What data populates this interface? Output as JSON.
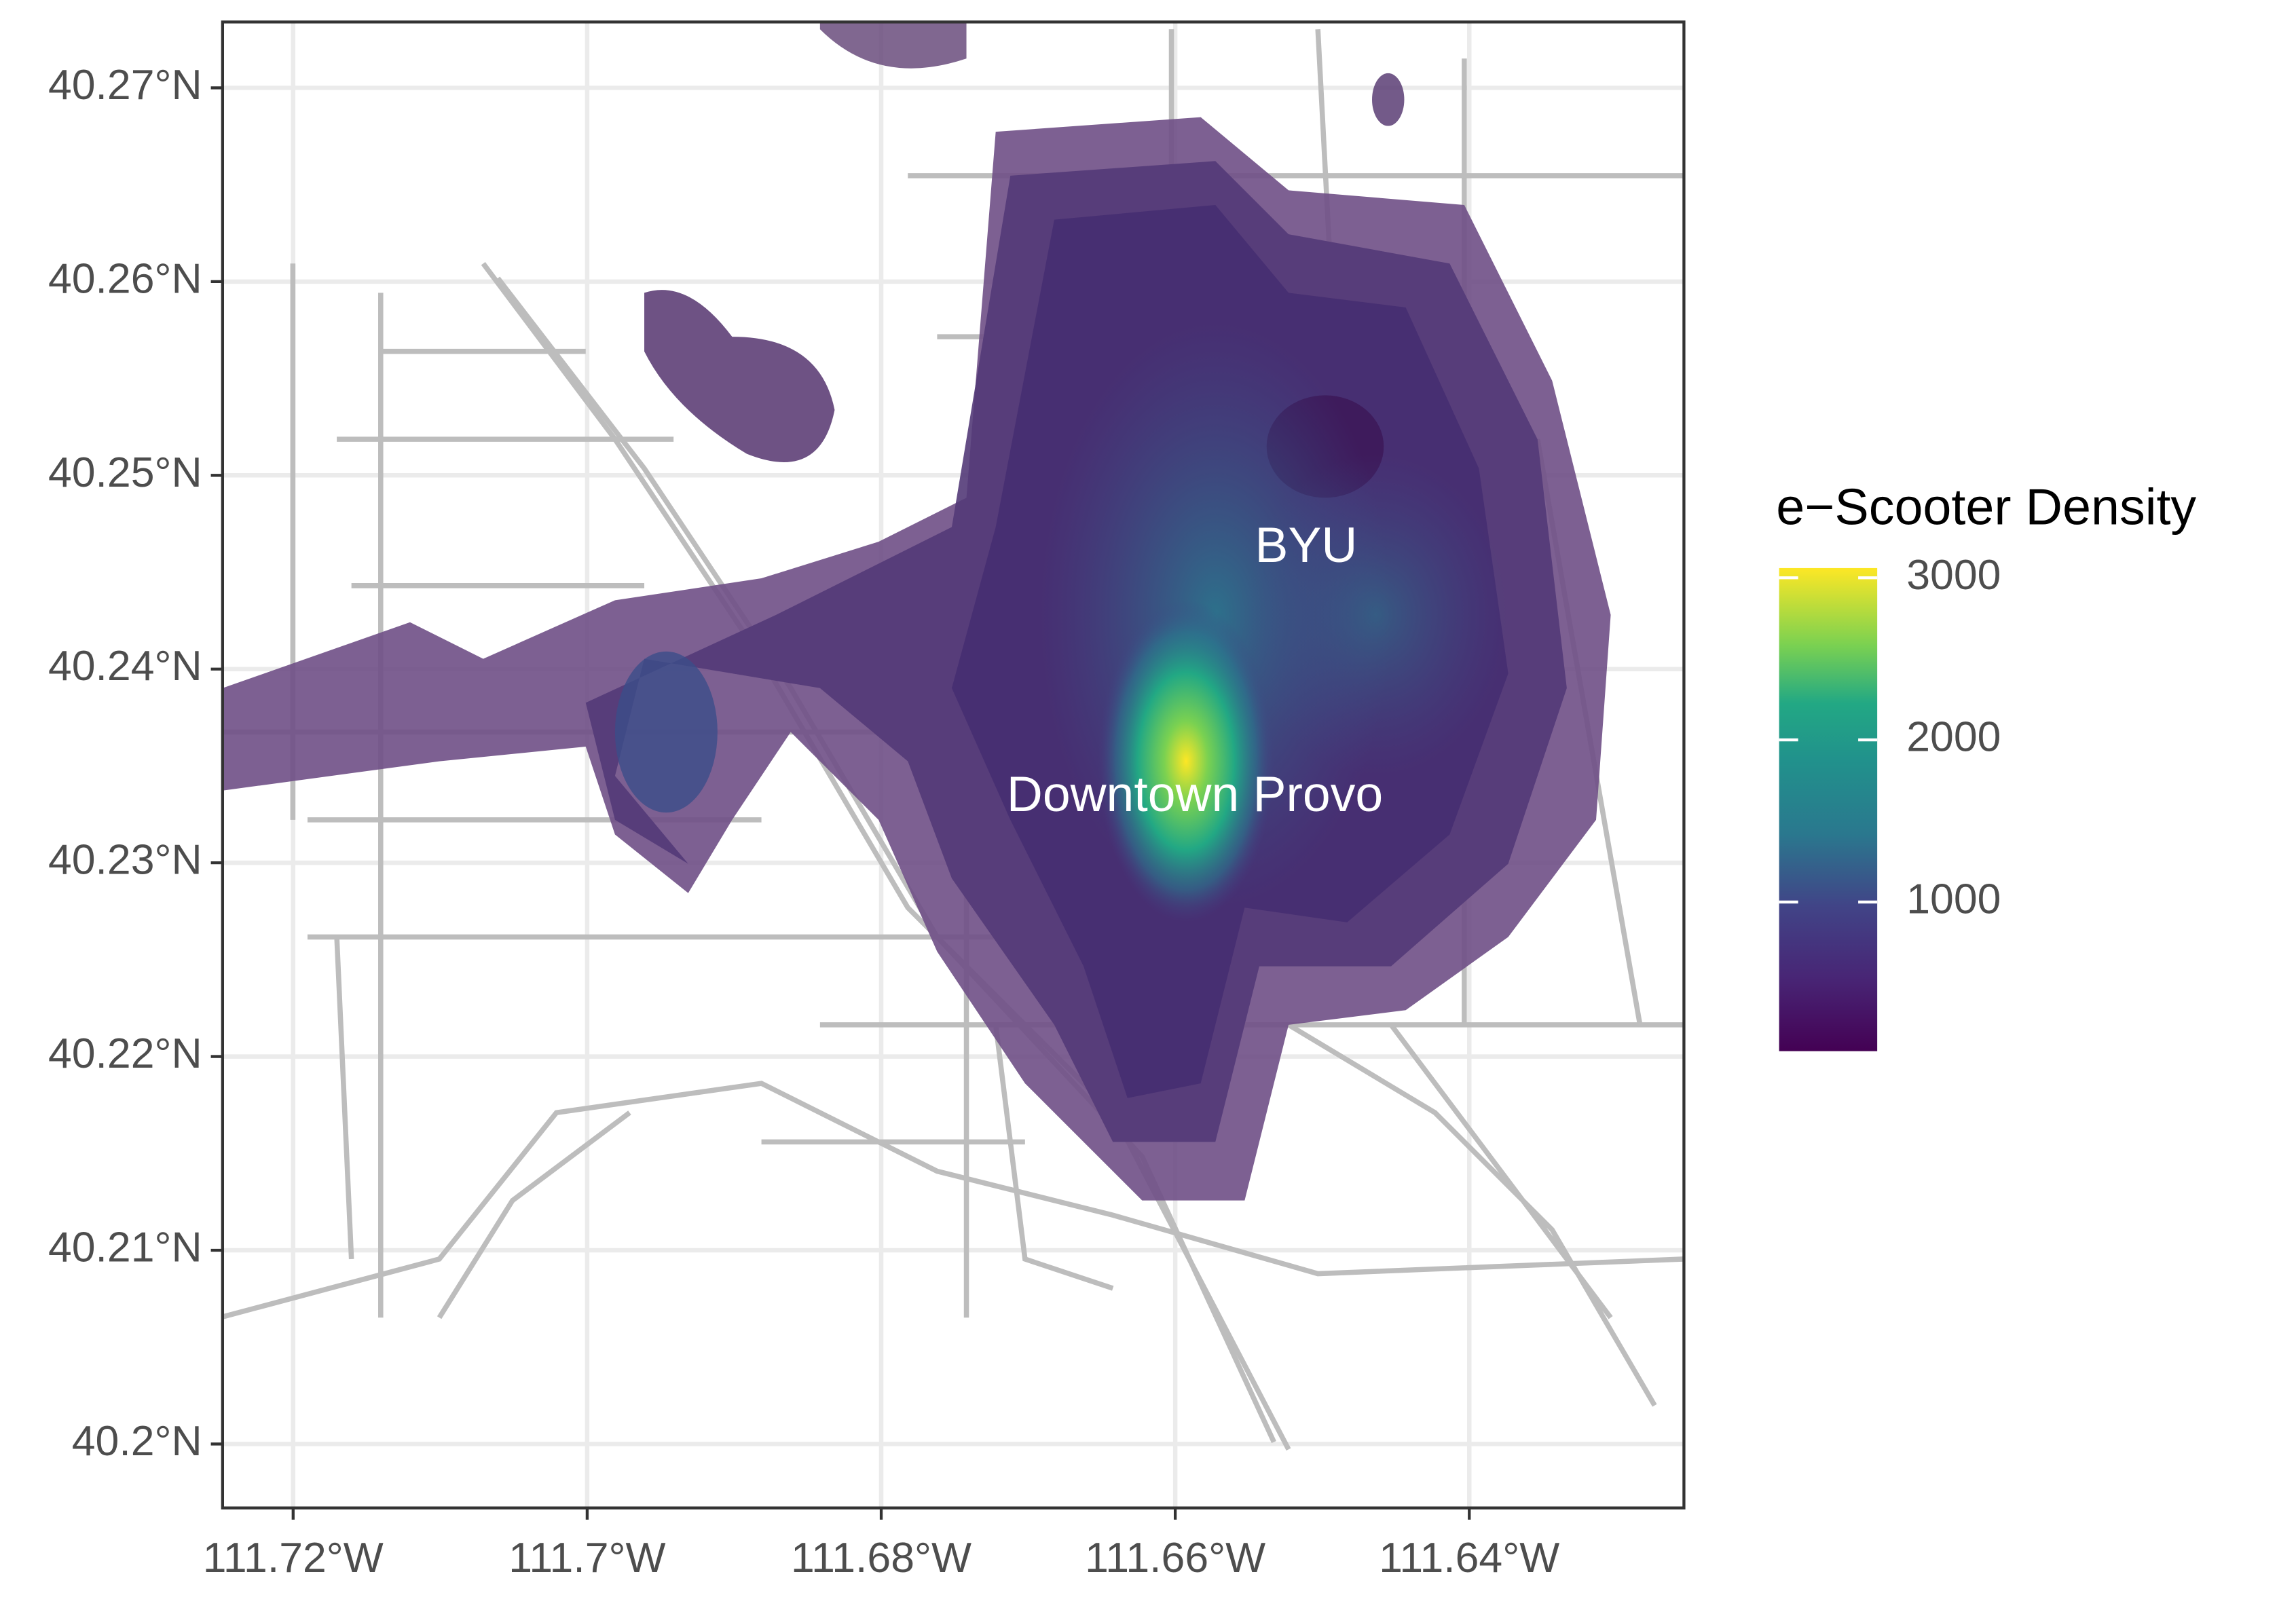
{
  "chart_data": {
    "type": "density-map",
    "xlim": [
      -111.7248,
      -111.6254
    ],
    "ylim": [
      40.1967,
      40.2734
    ],
    "xticks": [
      {
        "value": -111.72,
        "label": "111.72°W"
      },
      {
        "value": -111.7,
        "label": "111.7°W"
      },
      {
        "value": -111.68,
        "label": "111.68°W"
      },
      {
        "value": -111.66,
        "label": "111.66°W"
      },
      {
        "value": -111.64,
        "label": "111.64°W"
      }
    ],
    "yticks": [
      {
        "value": 40.2,
        "label": "40.2°N"
      },
      {
        "value": 40.21,
        "label": "40.21°N"
      },
      {
        "value": 40.22,
        "label": "40.22°N"
      },
      {
        "value": 40.23,
        "label": "40.23°N"
      },
      {
        "value": 40.24,
        "label": "40.24°N"
      },
      {
        "value": 40.25,
        "label": "40.25°N"
      },
      {
        "value": 40.26,
        "label": "40.26°N"
      },
      {
        "value": 40.27,
        "label": "40.27°N"
      }
    ],
    "grid": true,
    "legend": {
      "title": "e−Scooter Density",
      "lim": [
        80,
        3060
      ],
      "ticks": [
        1000,
        2000,
        3000
      ]
    },
    "annotations": [
      {
        "text": "BYU"
      },
      {
        "text": "Downtown Provo"
      }
    ]
  }
}
